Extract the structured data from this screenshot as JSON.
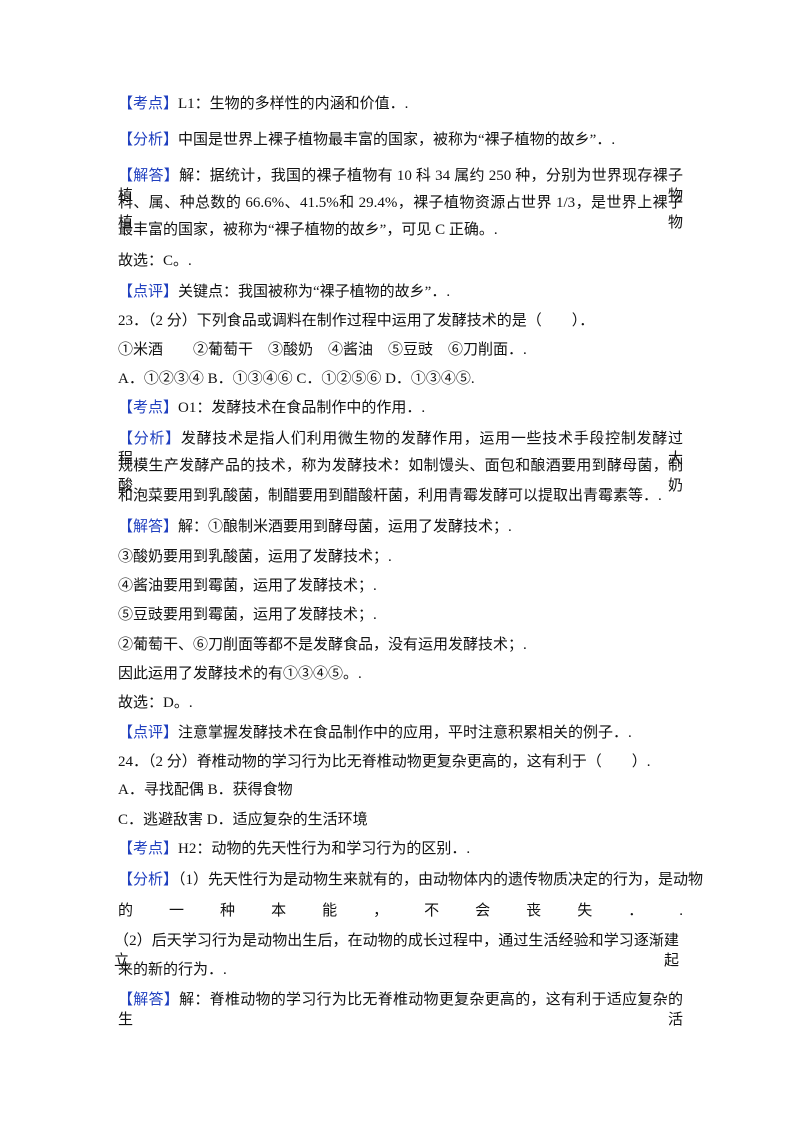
{
  "lines": [
    {
      "tag": "【考点】",
      "text": "L1：生物的多样性的内涵和价值．."
    },
    {
      "tag": "【分析】",
      "text": "中国是世界上裸子植物最丰富的国家，被称为“裸子植物的故乡”．."
    },
    {
      "tag": "【解答】",
      "text": "解：据统计，我国的裸子植物有 10 科 34 属约 250 种，分别为世界现存裸子植物"
    },
    {
      "text": "科、属、种总数的 66.6%、41.5%和 29.4%，裸子植物资源占世界 1/3，是世界上裸子植物"
    },
    {
      "text": "最丰富的国家，被称为“裸子植物的故乡”，可见 C 正确。."
    },
    {
      "text": "故选：C。."
    },
    {
      "tag": "【点评】",
      "text": "关键点：我国被称为“裸子植物的故乡”．."
    },
    {
      "text": "23．（2 分）下列食品或调料在制作过程中运用了发酵技术的是（　　）．"
    },
    {
      "text": "①米酒　　②葡萄干　③酸奶　④酱油　⑤豆豉　⑥刀削面．."
    },
    {
      "text": "A．①②③④ B．①③④⑥ C．①②⑤⑥ D．①③④⑤."
    },
    {
      "tag": "【考点】",
      "text": "O1：发酵技术在食品制作中的作用．."
    },
    {
      "tag": "【分析】",
      "text": "发酵技术是指人们利用微生物的发酵作用，运用一些技术手段控制发酵过程，大"
    },
    {
      "text": "规模生产发酵产品的技术，称为发酵技术．如制馒头、面包和酿酒要用到酵母菌，制酸奶"
    },
    {
      "text": "和泡菜要用到乳酸菌，制醋要用到醋酸杆菌，利用青霉发酵可以提取出青霉素等．."
    },
    {
      "tag": "【解答】",
      "text": "解：①酿制米酒要用到酵母菌，运用了发酵技术；."
    },
    {
      "text": "③酸奶要用到乳酸菌，运用了发酵技术；."
    },
    {
      "text": "④酱油要用到霉菌，运用了发酵技术；."
    },
    {
      "text": "⑤豆豉要用到霉菌，运用了发酵技术；."
    },
    {
      "text": "②葡萄干、⑥刀削面等都不是发酵食品，没有运用发酵技术；."
    },
    {
      "text": "因此运用了发酵技术的有①③④⑤。."
    },
    {
      "text": "故选：D。."
    },
    {
      "tag": "【点评】",
      "text": "注意掌握发酵技术在食品制作中的应用，平时注意积累相关的例子．."
    },
    {
      "text": "24．（2 分）脊椎动物的学习行为比无脊椎动物更复杂更高的，这有利于（　　）."
    },
    {
      "text": "A．寻找配偶 B．获得食物"
    },
    {
      "text": "C．逃避敌害 D．适应复杂的生活环境"
    },
    {
      "tag": "【考点】",
      "text": "H2：动物的先天性行为和学习行为的区别．."
    },
    {
      "tag": "【分析】",
      "text": "（1）先天性行为是动物生来就有的，由动物体内的遗传物质决定的行为，是动物"
    },
    {
      "text": "的一种本能，不会丧失．."
    },
    {
      "text": "（2）后天学习行为是动物出生后，在动物的成长过程中，通过生活经验和学习逐渐建立起"
    },
    {
      "text": "来的新的行为．."
    },
    {
      "tag": "【解答】",
      "text": "解：脊椎动物的学习行为比无脊椎动物更复杂更高的，这有利于适应复杂的生活"
    }
  ]
}
